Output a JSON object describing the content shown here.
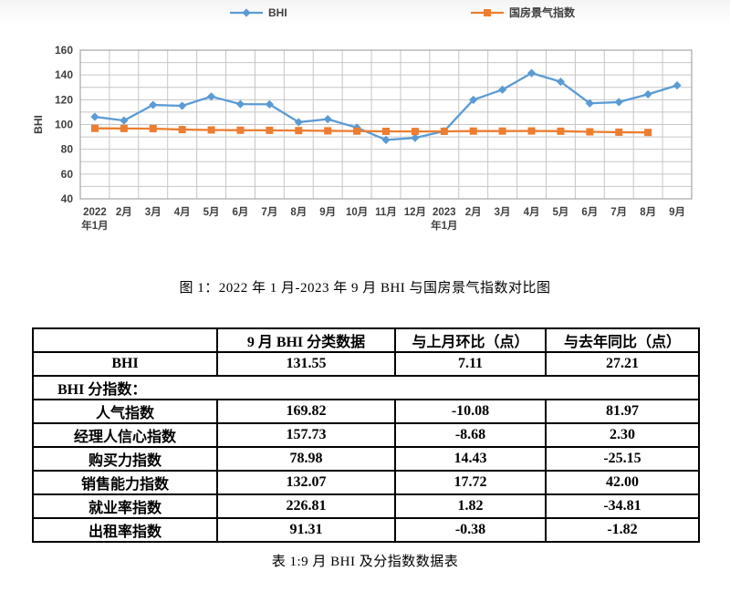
{
  "colors": {
    "bhi_series": "#5B9BD5",
    "guofang_series": "#ED7D31",
    "gridline": "#C6C6C6",
    "plot_border": "#A6A6A6",
    "axis_text": "#3F3F3F",
    "table_border": "#000000"
  },
  "chart_data": {
    "type": "line",
    "title": "",
    "ylabel": "BHI",
    "ylim": [
      40,
      160
    ],
    "ytick_step": 20,
    "ygrid_step": 10,
    "grid": true,
    "legend_position": "top",
    "x_labels": [
      [
        "2022",
        "年1月"
      ],
      [
        "2月"
      ],
      [
        "3月"
      ],
      [
        "4月"
      ],
      [
        "5月"
      ],
      [
        "6月"
      ],
      [
        "7月"
      ],
      [
        "8月"
      ],
      [
        "9月"
      ],
      [
        "10月"
      ],
      [
        "11月"
      ],
      [
        "12月"
      ],
      [
        "2023",
        "年1月"
      ],
      [
        "2月"
      ],
      [
        "3月"
      ],
      [
        "4月"
      ],
      [
        "5月"
      ],
      [
        "6月"
      ],
      [
        "7月"
      ],
      [
        "8月"
      ],
      [
        "9月"
      ]
    ],
    "series": [
      {
        "name": "BHI",
        "marker": "diamond",
        "color": "#5B9BD5",
        "values": [
          106.2,
          103.2,
          115.8,
          115.1,
          122.6,
          116.5,
          116.3,
          101.9,
          104.3,
          97.5,
          87.6,
          89.2,
          94.7,
          119.9,
          128.1,
          141.5,
          134.5,
          117.1,
          118.1,
          124.4,
          131.55
        ]
      },
      {
        "name": "国房景气指数",
        "marker": "square",
        "color": "#ED7D31",
        "values": [
          96.9,
          96.8,
          96.7,
          95.9,
          95.6,
          95.4,
          95.3,
          95.1,
          94.9,
          94.7,
          94.5,
          94.4,
          94.5,
          94.7,
          94.7,
          94.8,
          94.6,
          94.1,
          93.8,
          93.6,
          null
        ]
      }
    ]
  },
  "figure_caption": "图 1：2022 年 1 月-2023 年 9 月 BHI 与国房景气指数对比图",
  "table": {
    "headers": [
      "",
      "9 月 BHI 分类数据",
      "与上月环比（点）",
      "与去年同比（点）"
    ],
    "rows": [
      {
        "type": "data",
        "label": "BHI",
        "values": [
          "131.55",
          "7.11",
          "27.21"
        ]
      },
      {
        "type": "section",
        "label": "BHI 分指数："
      },
      {
        "type": "data",
        "label": "人气指数",
        "values": [
          "169.82",
          "-10.08",
          "81.97"
        ]
      },
      {
        "type": "data",
        "label": "经理人信心指数",
        "values": [
          "157.73",
          "-8.68",
          "2.30"
        ]
      },
      {
        "type": "data",
        "label": "购买力指数",
        "values": [
          "78.98",
          "14.43",
          "-25.15"
        ]
      },
      {
        "type": "data",
        "label": "销售能力指数",
        "values": [
          "132.07",
          "17.72",
          "42.00"
        ]
      },
      {
        "type": "data",
        "label": "就业率指数",
        "values": [
          "226.81",
          "1.82",
          "-34.81"
        ]
      },
      {
        "type": "data",
        "label": "出租率指数",
        "values": [
          "91.31",
          "-0.38",
          "-1.82"
        ]
      }
    ]
  },
  "table_caption": "表 1:9 月 BHI 及分指数数据表"
}
